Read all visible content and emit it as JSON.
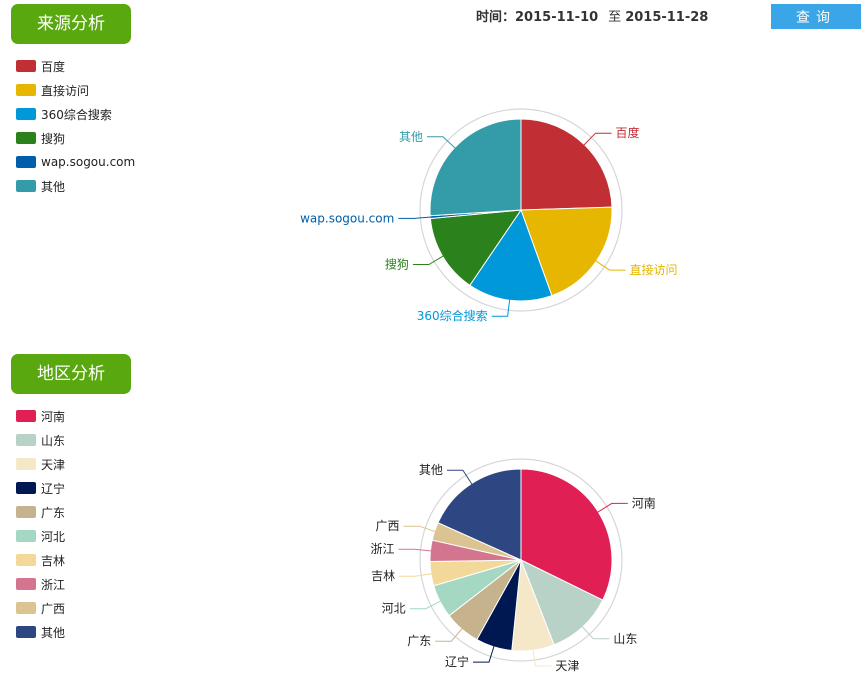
{
  "header": {
    "time_label": "时间：",
    "start_date": "2015-11-10",
    "to_label": "至",
    "end_date": "2015-11-28",
    "query_label": "查询"
  },
  "source_section": {
    "title": "来源分析"
  },
  "region_section": {
    "title": "地区分析"
  },
  "chart_data": [
    {
      "type": "pie",
      "categories": [
        "百度",
        "直接访问",
        "360综合搜索",
        "搜狗",
        "wap.sogou.com",
        "其他"
      ],
      "values": [
        24.5,
        20,
        15,
        14,
        0.5,
        26
      ],
      "colors": [
        "#c12e34",
        "#e6b600",
        "#0098d9",
        "#2b821d",
        "#005eaa",
        "#339ca8"
      ],
      "legend": "left"
    },
    {
      "type": "pie",
      "categories": [
        "河南",
        "山东",
        "天津",
        "辽宁",
        "广东",
        "河北",
        "吉林",
        "浙江",
        "广西",
        "其他"
      ],
      "values": [
        30,
        11,
        7,
        6,
        6,
        5.5,
        4,
        3.5,
        3,
        17
      ],
      "colors": [
        "#e01f54",
        "#b8d2c7",
        "#f5e8c8",
        "#001852",
        "#c6b38e",
        "#a4d8c2",
        "#f3d999",
        "#d3758f",
        "#dcc392",
        "#2e4783"
      ],
      "legend": "left"
    }
  ]
}
